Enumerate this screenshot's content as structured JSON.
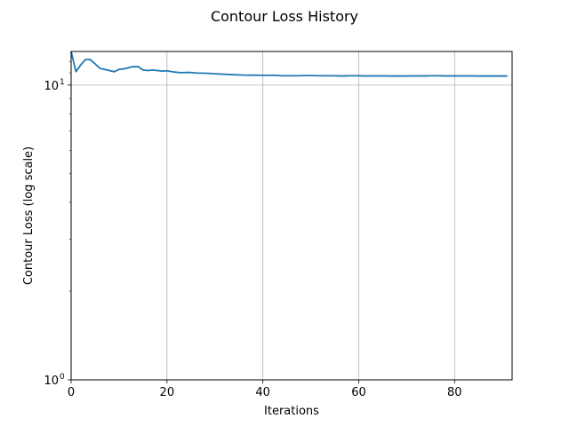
{
  "chart_data": {
    "type": "line",
    "title": "Contour Loss History",
    "xlabel": "Iterations",
    "ylabel": "Contour Loss (log scale)",
    "yscale": "log",
    "xlim": [
      0,
      92
    ],
    "ylim": [
      1,
      13
    ],
    "x_ticks": [
      0,
      20,
      40,
      60,
      80
    ],
    "y_ticks": [
      {
        "value": 1,
        "base": "10",
        "exp": "0"
      },
      {
        "value": 10,
        "base": "10",
        "exp": "1"
      }
    ],
    "grid": true,
    "series": [
      {
        "color": "#1f77b4",
        "x": [
          0,
          1,
          2,
          3,
          4,
          5,
          6,
          7,
          8,
          9,
          10,
          11,
          12,
          13,
          14,
          15,
          16,
          17,
          18,
          19,
          20,
          21,
          22,
          23,
          24,
          25,
          26,
          27,
          28,
          29,
          30,
          31,
          32,
          33,
          34,
          35,
          36,
          37,
          38,
          39,
          40,
          41,
          42,
          43,
          44,
          45,
          46,
          47,
          48,
          49,
          50,
          51,
          52,
          53,
          54,
          55,
          56,
          57,
          58,
          59,
          60,
          61,
          62,
          63,
          64,
          65,
          66,
          67,
          68,
          69,
          70,
          71,
          72,
          73,
          74,
          75,
          76,
          77,
          78,
          79,
          80,
          81,
          82,
          83,
          84,
          85,
          86,
          87,
          88,
          89,
          90,
          91
        ],
        "y": [
          13.0,
          11.1,
          11.7,
          12.2,
          12.2,
          11.8,
          11.4,
          11.3,
          11.2,
          11.1,
          11.3,
          11.35,
          11.45,
          11.55,
          11.55,
          11.25,
          11.2,
          11.25,
          11.2,
          11.15,
          11.18,
          11.1,
          11.05,
          11.02,
          11.03,
          11.03,
          10.99,
          10.98,
          10.97,
          10.95,
          10.92,
          10.9,
          10.88,
          10.86,
          10.84,
          10.83,
          10.81,
          10.8,
          10.81,
          10.8,
          10.79,
          10.79,
          10.8,
          10.78,
          10.75,
          10.75,
          10.75,
          10.75,
          10.76,
          10.77,
          10.77,
          10.76,
          10.75,
          10.75,
          10.75,
          10.75,
          10.74,
          10.74,
          10.75,
          10.75,
          10.75,
          10.74,
          10.74,
          10.74,
          10.74,
          10.74,
          10.74,
          10.73,
          10.73,
          10.73,
          10.73,
          10.74,
          10.74,
          10.74,
          10.74,
          10.75,
          10.75,
          10.75,
          10.74,
          10.74,
          10.74,
          10.74,
          10.74,
          10.74,
          10.74,
          10.73,
          10.73,
          10.73,
          10.73,
          10.73,
          10.73,
          10.73
        ]
      }
    ]
  }
}
